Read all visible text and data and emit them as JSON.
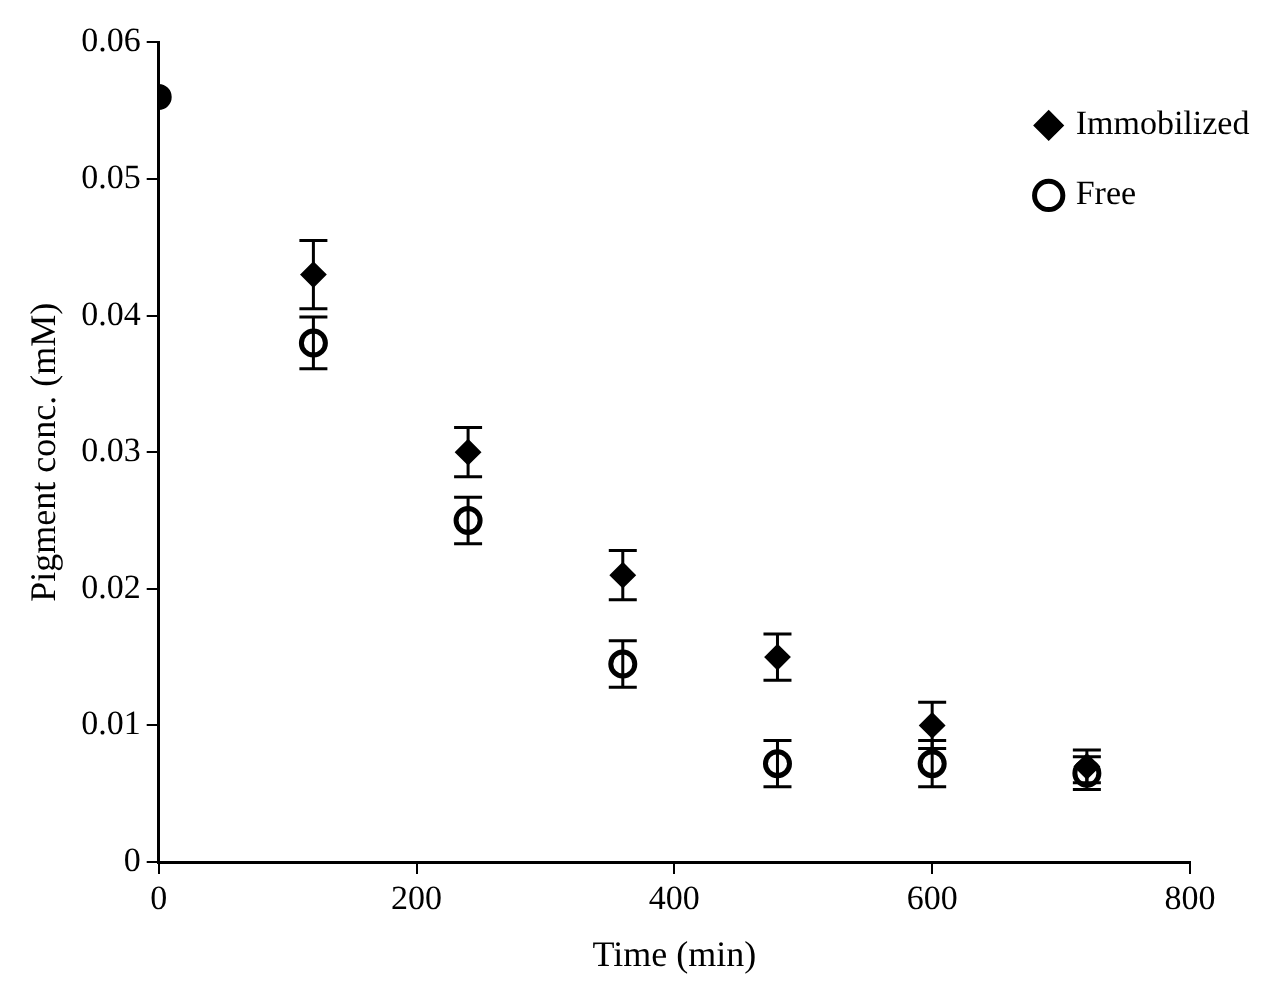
{
  "chart_data": {
    "type": "scatter",
    "xlabel": "Time (min)",
    "ylabel": "Pigment conc. (mM)",
    "series": [
      {
        "name": "Immobilized",
        "color": "#000000",
        "marker": "diamond",
        "x": [
          120,
          240,
          360,
          480,
          600,
          720
        ],
        "values": [
          0.043,
          0.03,
          0.021,
          0.015,
          0.01,
          0.007
        ],
        "errors": [
          0.0025,
          0.0018,
          0.0018,
          0.0017,
          0.0017,
          0.0012
        ]
      },
      {
        "name": "Free",
        "color": "#000000",
        "marker": "circle",
        "x": [
          120,
          240,
          360,
          480,
          600,
          720
        ],
        "values": [
          0.038,
          0.025,
          0.0145,
          0.0072,
          0.0072,
          0.0065
        ],
        "errors": [
          0.0019,
          0.0017,
          0.0017,
          0.0017,
          0.0017,
          0.0012
        ]
      },
      {
        "color": "#000000",
        "marker": "circle",
        "x": [
          0
        ],
        "values": [
          0.056
        ]
      }
    ],
    "xlim": [
      0,
      800
    ],
    "xticks": [
      0,
      200,
      400,
      600,
      800
    ],
    "ylim": [
      0,
      0.06
    ],
    "yticks": [
      0,
      0.01,
      0.02,
      0.03,
      0.04,
      0.05,
      0.06
    ],
    "grid": false,
    "legend": "top right"
  }
}
